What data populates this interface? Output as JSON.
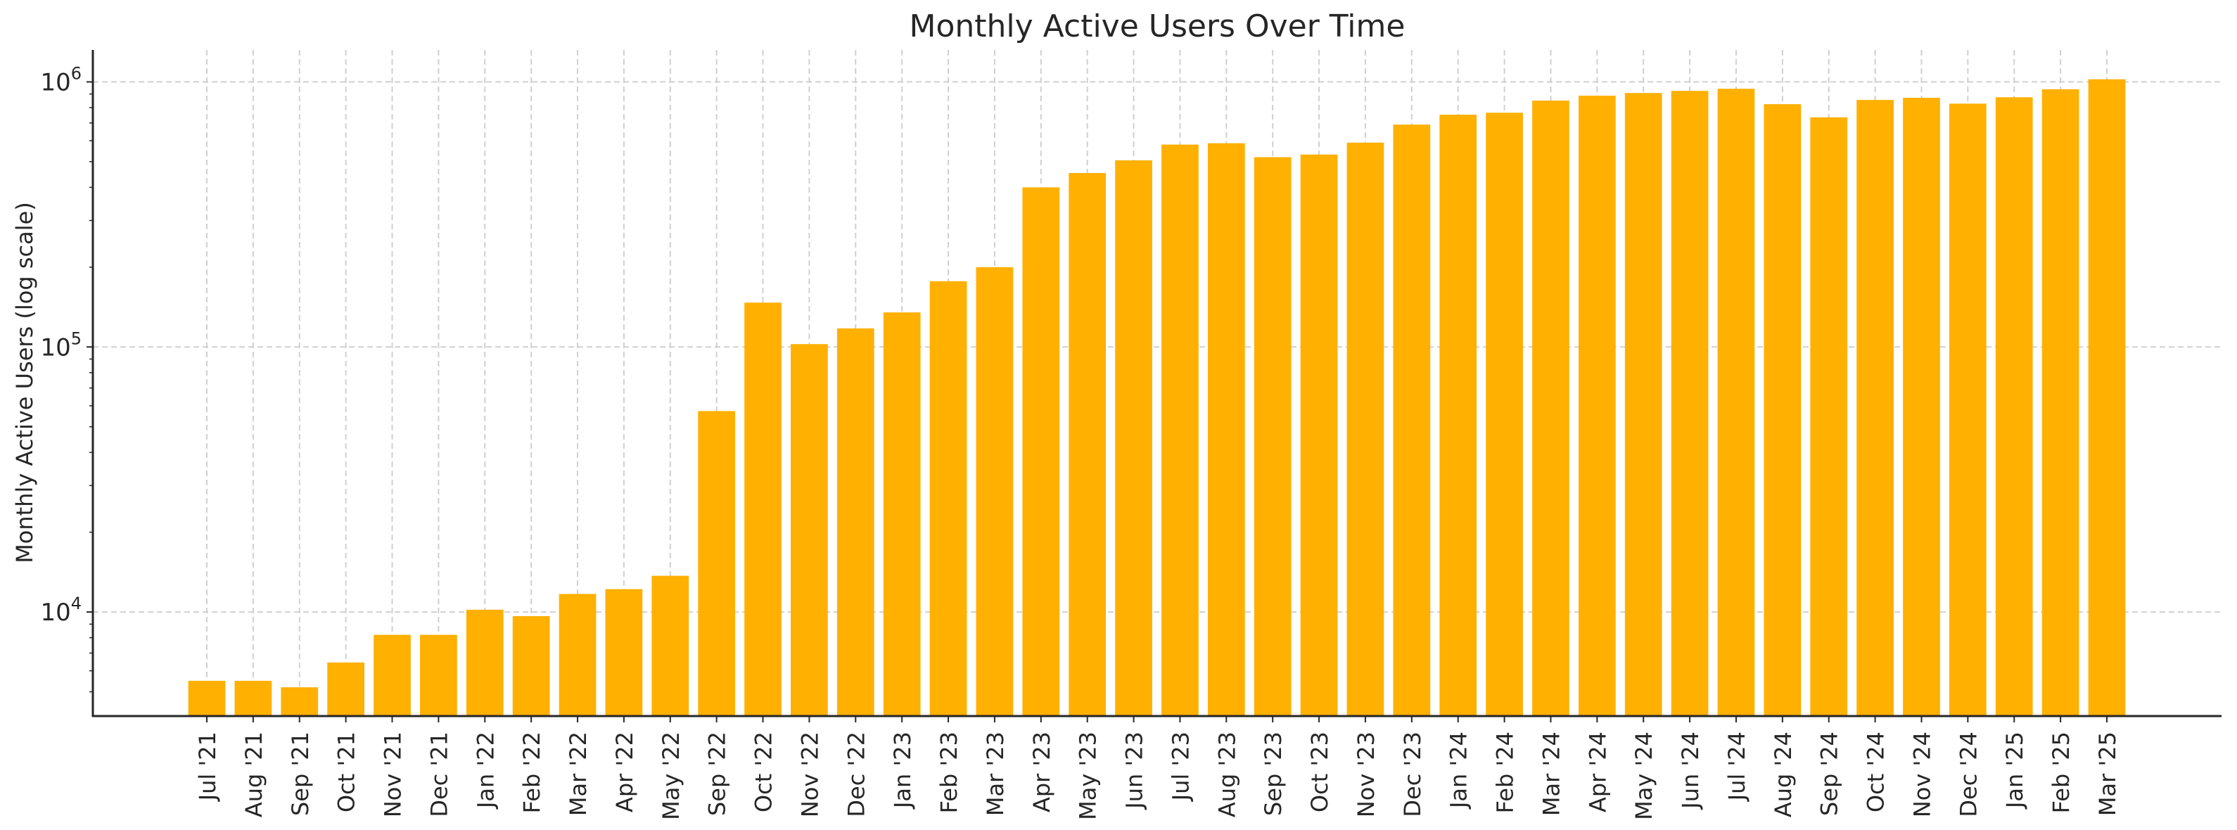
{
  "chart_data": {
    "type": "bar",
    "title": "Monthly Active Users Over Time",
    "xlabel": "",
    "ylabel": "Monthly Active Users (log scale)",
    "yscale": "log",
    "ylim": [
      4050,
      1320000
    ],
    "yticks": [
      10000,
      100000,
      1000000
    ],
    "ytick_labels": [
      {
        "base": "10",
        "exp": "4"
      },
      {
        "base": "10",
        "exp": "5"
      },
      {
        "base": "10",
        "exp": "6"
      }
    ],
    "grid": true,
    "bar_color": "#FFB000",
    "categories": [
      "Jul '21",
      "Aug '21",
      "Sep '21",
      "Oct '21",
      "Nov '21",
      "Dec '21",
      "Jan '22",
      "Feb '22",
      "Mar '22",
      "Apr '22",
      "May '22",
      "Sep '22",
      "Oct '22",
      "Nov '22",
      "Dec '22",
      "Jan '23",
      "Feb '23",
      "Mar '23",
      "Apr '23",
      "May '23",
      "Jun '23",
      "Jul '23",
      "Aug '23",
      "Sep '23",
      "Oct '23",
      "Nov '23",
      "Dec '23",
      "Jan '24",
      "Feb '24",
      "Mar '24",
      "Apr '24",
      "May '24",
      "Jun '24",
      "Jul '24",
      "Aug '24",
      "Sep '24",
      "Oct '24",
      "Nov '24",
      "Dec '24",
      "Jan '25",
      "Feb '25",
      "Mar '25"
    ],
    "values": [
      5500,
      5500,
      5200,
      6450,
      8200,
      8200,
      10200,
      9650,
      11700,
      12200,
      13700,
      57300,
      147000,
      102500,
      117500,
      135000,
      177000,
      200000,
      400000,
      453000,
      506000,
      580000,
      587000,
      520000,
      532000,
      590000,
      690000,
      752000,
      765000,
      850000,
      887000,
      908000,
      925000,
      942000,
      824000,
      735000,
      855000,
      871000,
      828000,
      875000,
      938000,
      1023000
    ]
  }
}
